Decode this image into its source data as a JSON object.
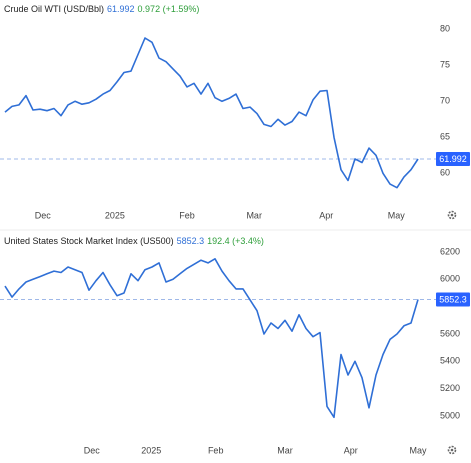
{
  "chart_data": [
    {
      "type": "line",
      "title": "Crude Oil WTI (USD/Bbl)",
      "change": "0.972 (+1.59%)",
      "last_value": 61.992,
      "series": [
        {
          "color": "#2f6fd6",
          "values": [
            68.5,
            69.3,
            69.5,
            70.8,
            68.8,
            68.9,
            68.7,
            69.0,
            68.0,
            69.5,
            70.0,
            69.6,
            69.8,
            70.3,
            71.0,
            71.5,
            72.7,
            74.0,
            74.2,
            76.5,
            78.8,
            78.2,
            76.0,
            75.5,
            74.5,
            73.5,
            72.0,
            72.5,
            71.0,
            72.5,
            70.5,
            70.0,
            70.4,
            71.0,
            69.0,
            69.2,
            68.3,
            66.8,
            66.5,
            67.5,
            66.7,
            67.2,
            68.5,
            68.0,
            70.2,
            71.4,
            71.5,
            65.0,
            60.5,
            59.0,
            62.0,
            61.5,
            63.5,
            62.5,
            60.0,
            58.5,
            58.0,
            59.5,
            60.5,
            61.992
          ]
        }
      ],
      "xlim": [
        0,
        59
      ],
      "xticks": [
        {
          "value": 5.4,
          "label": "Dec"
        },
        {
          "value": 15.7,
          "label": "2025"
        },
        {
          "value": 26,
          "label": "Feb"
        },
        {
          "value": 35.6,
          "label": "Mar"
        },
        {
          "value": 45.9,
          "label": "Apr"
        },
        {
          "value": 55.9,
          "label": "May"
        }
      ],
      "ylim": [
        54.9,
        81.3
      ],
      "yticks": [
        60,
        65,
        70,
        75,
        80
      ]
    },
    {
      "type": "line",
      "title": "United States Stock Market Index (US500)",
      "change": "192.4 (+3.4%)",
      "last_value": 5852.3,
      "series": [
        {
          "color": "#2f6fd6",
          "values": [
            5950,
            5870,
            5930,
            5980,
            6000,
            6020,
            6040,
            6060,
            6050,
            6090,
            6070,
            6050,
            5920,
            5990,
            6050,
            5960,
            5880,
            5900,
            6040,
            5990,
            6070,
            6090,
            6120,
            5980,
            6000,
            6040,
            6080,
            6110,
            6140,
            6120,
            6150,
            6060,
            5990,
            5930,
            5930,
            5850,
            5770,
            5600,
            5680,
            5640,
            5700,
            5620,
            5740,
            5640,
            5580,
            5610,
            5070,
            4990,
            5450,
            5300,
            5400,
            5280,
            5060,
            5300,
            5450,
            5560,
            5600,
            5660,
            5680,
            5852.3
          ]
        }
      ],
      "xlim": [
        0,
        59
      ],
      "xticks": [
        {
          "value": 12.4,
          "label": "Dec"
        },
        {
          "value": 20.9,
          "label": "2025"
        },
        {
          "value": 30.1,
          "label": "Feb"
        },
        {
          "value": 40,
          "label": "Mar"
        },
        {
          "value": 49.4,
          "label": "Apr"
        },
        {
          "value": 59,
          "label": "May"
        }
      ],
      "ylim": [
        4824,
        6251
      ],
      "yticks": [
        5000,
        5200,
        5400,
        5600,
        6000,
        6200
      ]
    }
  ]
}
